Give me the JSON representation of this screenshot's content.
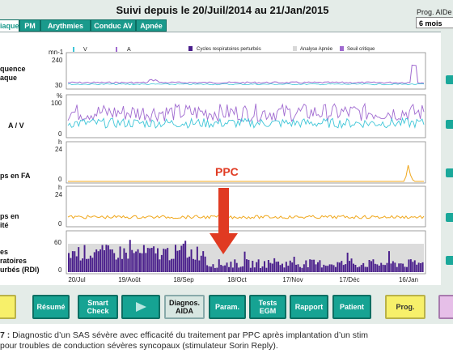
{
  "window": {
    "title": "Suivi depuis le 20/Juil/2014 au 21/Jan/2015"
  },
  "prog": {
    "label": "Prog. AIDe",
    "value": "6 mois"
  },
  "tabs": [
    {
      "label": "rdiaque"
    },
    {
      "label": "PM"
    },
    {
      "label": "Arythmies"
    },
    {
      "label": "Conduc AV"
    },
    {
      "label": "Apnée"
    }
  ],
  "rows": {
    "freq": {
      "label_line1": "quence",
      "label_line2": "aque",
      "yunit": "mn-1",
      "ytop": "240",
      "ybottom": "30"
    },
    "av": {
      "label": "A / V",
      "yunit": "%",
      "ytop": "100",
      "ybottom": "0"
    },
    "fa": {
      "label": "ps en FA",
      "yunit": "h",
      "ytop": "24",
      "ybottom": "0"
    },
    "act": {
      "label_line1": "ps en",
      "label_line2": "ité",
      "yunit": "h",
      "ytop": "24",
      "ybottom": "0"
    },
    "resp": {
      "label_line1": "es",
      "label_line2": "ratoires",
      "label_line3": "urbés (RDI)",
      "ytop": "60",
      "ybottom": "0"
    }
  },
  "legend": {
    "v": "V",
    "a": "A",
    "cycles": "Cycles respiratoires perturbés",
    "analysis": "Analyse Apnée",
    "threshold": "Seuil critique"
  },
  "xaxis": {
    "ticks": [
      "20/Jul",
      "19/Août",
      "18/Sep",
      "18/Oct",
      "17/Nov",
      "17/Déc",
      "16/Jan"
    ]
  },
  "annotation": {
    "ppc": "PPC"
  },
  "buttons": {
    "resume": "Résumé",
    "smart_check": "Smart\nCheck",
    "diagnos": "Diagnos.\nAIDA",
    "param": "Param.",
    "tests": "Tests\nEGM",
    "rapport": "Rapport",
    "patient": "Patient",
    "prog": "Prog."
  },
  "caption": {
    "prefix": "7 :",
    "line1": " Diagnostic d’un SAS sévère avec efficacité du traitement par PPC après implantation d’un stim",
    "line2": "pour troubles de conduction sévères syncopaux (stimulateur Sorin Reply)."
  },
  "colors": {
    "teal": "#16a393",
    "purple": "#4a1f8c",
    "orange": "#f0a81e",
    "cyan": "#3ec6d8",
    "red": "#e03a22"
  }
}
